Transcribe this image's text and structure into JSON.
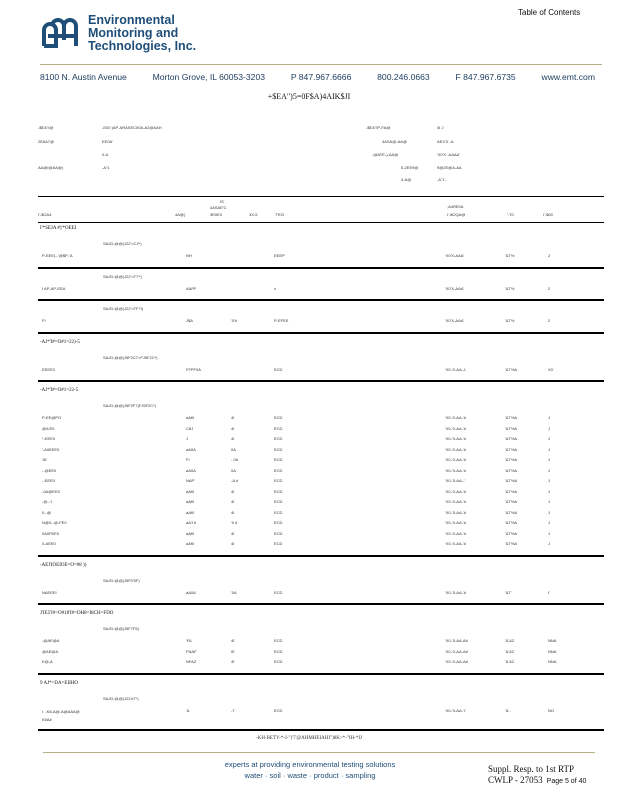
{
  "header": {
    "toc_link": "Table of Contents",
    "company": [
      "Environmental",
      "Monitoring and",
      "Technologies, Inc."
    ],
    "address": [
      "8100 N. Austin Avenue",
      "Morton Grove, IL 60053-3203",
      "P 847.967.6666",
      "800.246.0663",
      "F 847.967.6735",
      "www.emt.com"
    ],
    "report_title": "+$EA\")5=0F$A)4AIK$JI"
  },
  "info": {
    "left": [
      [
        "-$EA\"I@",
        "-E00 )AP-ARASEC00A-A2@AAH"
      ],
      [
        "2E6A7@",
        "EE0A'"
      ],
      [
        "",
        "0-A"
      ],
      [
        "AA@I@AA@)",
        "-A\"1"
      ]
    ],
    "right": [
      [
        "-$EA\"IP-FA@",
        "4I  J"
      ],
      [
        "4ASA@-AA@",
        "AEX'X -A"
      ],
      [
        "-@ATE-)-AA@",
        "'X0'X -AAAA'"
      ],
      [
        "5-2EE9@",
        "9@2E@A-AA"
      ],
      [
        "3-A@",
        "-A\"1'-"
      ]
    ]
  },
  "columns": {
    "top": [
      "IS",
      "4ASAE'C",
      "",
      "",
      ",A4RE0A"
    ],
    "labels": [
      "I'-$OA4",
      "4A@)",
      "3E0E3",
      "3X-5",
      "7'E2I",
      "I'-$OQA@",
      "'-T0",
      "I'-$00"
    ]
  },
  "sections": [
    {
      "title": "I'*SEJA   #)'*OEEI",
      "groups": [
        {
          "method": "SAJD-@@(J22'=C2*)",
          "rows": [
            [
              "P-EEE)--'@$P-'A",
              "NH",
              "",
              "EEEP",
              "'X0'X-AAA'",
              "'&T%",
              "2"
            ]
          ]
        },
        {
          "method": "SAJD-@@(J22'=F7'*)",
          "rows": [
            [
              "I  AP-AP-EEA",
              "AAPF",
              "",
              "z",
              "'X0'X-AAA'",
              "'&T%",
              "2"
            ]
          ]
        },
        {
          "method": "SAJD-@@(J22'=FF7I)",
          "rows": [
            [
              "FI",
              "J$A",
              "'0'#",
              "P-EFEE",
              "'X0'X-AAA'",
              "'&T%",
              "2"
            ]
          ]
        }
      ]
    },
    {
      "title": "-AJ*'I#=O#1=22)-5",
      "groups": [
        {
          "method": "SAJD-@@(J5F2C7=FJ5F2C*)",
          "rows": [
            [
              "EEEE0",
              "FFPF0A",
              "",
              "ECD",
              "'X0-'0-AA-J-",
              "'&T%A",
              "X0'"
            ]
          ]
        }
      ]
    },
    {
      "title": "-AJ*'I#=O#1=22-5",
      "groups": [
        {
          "method": "SAJD-@@(J5F2F7(FJ5F2C*)",
          "rows": [
            [
              "P-EE@PO",
              "aAf0",
              "4I",
              "ECD",
              "'X0-'0-AA-'#",
              "'&T%A",
              "J"
            ],
            [
              "@A'E0",
              "C8J",
              "4I",
              "ECD",
              "'X0-'0-AA-'#",
              "'&T%A",
              "J"
            ],
            [
              "*-EEE0",
              "J",
              "4I",
              "ECD",
              "'X0-'0-AA-'#",
              "'&T%A",
              "J"
            ],
            [
              "'-A0EEE0",
              "aA0A",
              "0A",
              "ECD",
              "'X0-'0-AA-'#",
              "'&T%A",
              "J"
            ],
            [
              "'AI'",
              "FI",
              "- 0A",
              "ECD",
              "'X0-'0-AA-'#",
              "'&T%A",
              "J"
            ],
            [
              "--@EE0",
              "aA0A",
              "0A",
              "ECD",
              "'X0-'0-AA-'#",
              "'&T%A",
              "J"
            ],
            [
              "--EEE0",
              "NAP'",
              "-A #",
              "ECD",
              "'X0-'0-AA--'",
              "'&T%A",
              "J"
            ],
            [
              "-0A@EE0",
              "aAf0",
              "4I",
              "ECD",
              "'X0-'0-AA-'#",
              "'&T%A",
              "J"
            ],
            [
              "-@--'I",
              "aAf0",
              "4I",
              "ECD",
              "'X0-'0-AA-'#",
              "'&T%A",
              "J"
            ],
            [
              "0--@",
              "aAf0",
              "4I",
              "ECD",
              "'X0-'0-AA-'#",
              "'&T%A",
              "J"
            ],
            [
              "N@0--@-FE0",
              "aA'f #",
              "'0 #",
              "ECD",
              "'X0-'0-AA-'#",
              "'&T%A",
              "J"
            ],
            [
              "0A0FEE0",
              "aAf0",
              "4I",
              "ECD",
              "'X0-'0-AA-'#",
              "'&T%A",
              "J"
            ],
            [
              "0-AEE0",
              "aAf0",
              "4I",
              "ECD",
              "'X0-'0-AA-'#",
              "'&T%A",
              "J"
            ]
          ]
        }
      ]
    },
    {
      "title": "-AEI'IOEIOE=O=#8      ))",
      "groups": [
        {
          "method": "SAJD-@@(J5F0'5F)",
          "rows": [
            [
              "NAEEEI",
              "aA0A",
              "'0A",
              "ECD",
              "'X0-'0-AA-'#",
              "'&T'",
              "I'"
            ]
          ]
        }
      ]
    },
    {
      "title": "J'IE5'I#=O#18'I#=DH8=I8CH=FDO",
      "groups": [
        {
          "method": "SAJD-@@(J5F7F5)",
          "rows": [
            [
              "-@AE@A",
              "'FA",
              "4I'",
              "ECD",
              "'X0-'0-AA-A#",
              "'&'&2",
              "NNA"
            ],
            [
              "@AE@A",
              "FNAF",
              "0I'",
              "ECD",
              "'X0-'0-AA-A#",
              "'&'&2",
              "NNA"
            ],
            [
              "E@-A",
              "NFAZ",
              "4I'",
              "ECD",
              "'X0-'0-AA-A#",
              "'&'&2",
              "NNA"
            ]
          ]
        }
      ]
    },
    {
      "title": "9   AJ*=DA=EIIHO",
      "groups": [
        {
          "method": "SAJD-@@(J22'#7*)",
          "rows": [
            [
              "I  -K8-A@-A@AAA@\nE#A#",
              "'&",
              "-'I'",
              "ECD",
              "'X0-'0-AA-'I'",
              "'&'-",
              "NO"
            ]
          ]
        }
      ]
    }
  ],
  "table_footer": "-KH-BETY-*-J-\")'7'@AHMHEIAHI\")8K>*-\"IH-*IJ",
  "footer": {
    "tagline": "experts at providing environmental testing solutions",
    "services": "water · soil · waste · product · sampling",
    "stamp": "Suppl. Resp. to 1st RTP",
    "bates": "CWLP - 27053",
    "page": "Page 5 of 40"
  },
  "colors": {
    "brand": "#1f4e79",
    "rule": "#b5b08a"
  }
}
